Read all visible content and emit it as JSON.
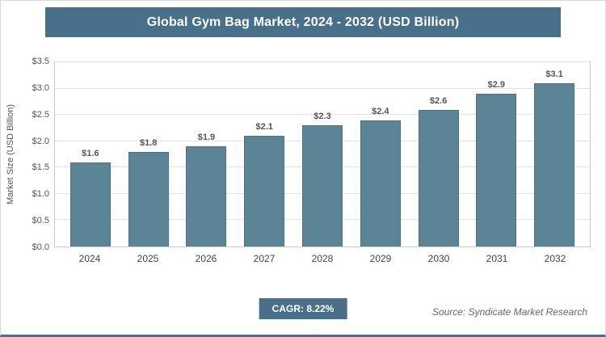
{
  "chart_data": {
    "type": "bar",
    "title": "Global Gym Bag Market, 2024 - 2032 (USD Billion)",
    "categories": [
      "2024",
      "2025",
      "2026",
      "2027",
      "2028",
      "2029",
      "2030",
      "2031",
      "2032"
    ],
    "values": [
      1.6,
      1.8,
      1.9,
      2.1,
      2.3,
      2.4,
      2.6,
      2.9,
      3.1
    ],
    "value_labels": [
      "$1.6",
      "$1.8",
      "$1.9",
      "$2.1",
      "$2.3",
      "$2.4",
      "$2.6",
      "$2.9",
      "$3.1"
    ],
    "xlabel": "",
    "ylabel": "Market Size (USD Billion)",
    "ylim": [
      0,
      3.5
    ],
    "ytick_labels": [
      "$0.0",
      "$0.5",
      "$1.0",
      "$1.5",
      "$2.0",
      "$2.5",
      "$3.0",
      "$3.5"
    ],
    "grid": true,
    "legend": "none",
    "bar_color": "#5b8496",
    "bar_border_color": "#4a7186",
    "accent_color": "#49708a"
  },
  "footer": {
    "cagr_label": "CAGR: 8.22%",
    "source": "Source: Syndicate Market Research"
  }
}
